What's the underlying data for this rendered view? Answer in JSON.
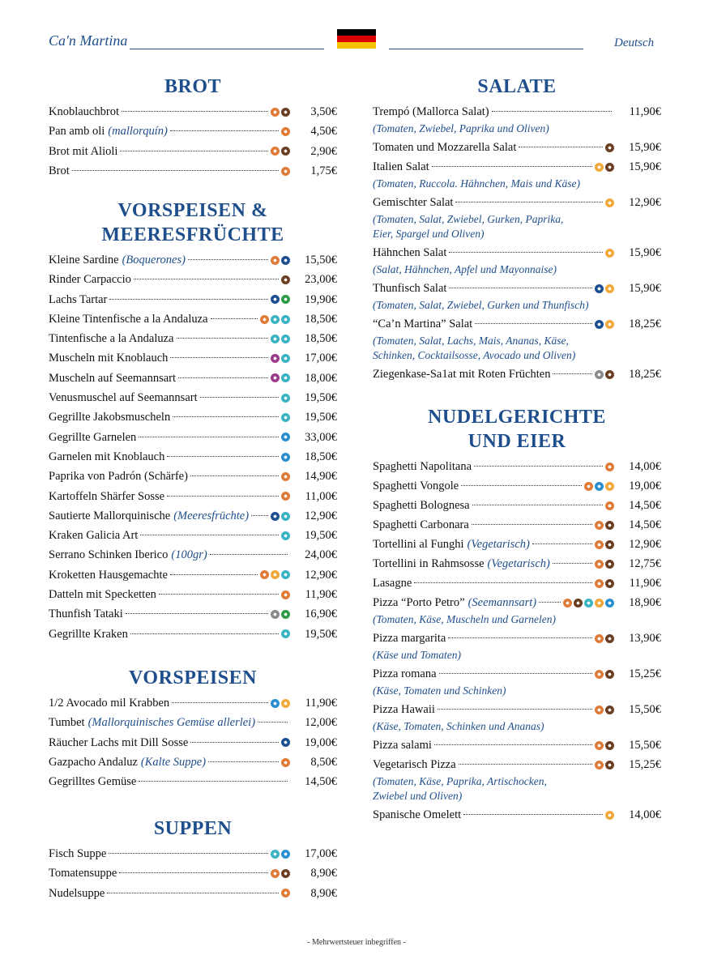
{
  "header": {
    "logo": "Ca'n Martina",
    "language": "Deutsch"
  },
  "footer": "- Mehrwertsteuer inbegriffen -",
  "columns": [
    {
      "sections": [
        {
          "title": [
            "BROT"
          ],
          "items": [
            {
              "name": "Knoblauchbrot",
              "price": "3,50€",
              "icons": [
                "#e07b39",
                "#6b3e22"
              ]
            },
            {
              "name": "Pan amb oli",
              "note": "(mallorquín)",
              "price": "4,50€",
              "icons": [
                "#e07b39"
              ]
            },
            {
              "name": "Brot mit Alioli",
              "price": "2,90€",
              "icons": [
                "#e07b39",
                "#6b3e22"
              ]
            },
            {
              "name": "Brot",
              "price": "1,75€",
              "icons": [
                "#e07b39"
              ]
            }
          ]
        },
        {
          "title": [
            "VORSPEISEN &",
            "MEERESFRÜCHTE"
          ],
          "items": [
            {
              "name": "Kleine Sardine",
              "note": "(Boquerones)",
              "price": "15,50€",
              "icons": [
                "#e07b39",
                "#1d4f91"
              ]
            },
            {
              "name": "Rinder Carpaccio",
              "price": "23,00€",
              "icons": [
                "#6b3e22"
              ]
            },
            {
              "name": "Lachs Tartar",
              "price": "19,90€",
              "icons": [
                "#1d4f91",
                "#2e9a48"
              ]
            },
            {
              "name": "Kleine Tintenfische a la Andaluza",
              "price": "18,50€",
              "icons": [
                "#e07b39",
                "#3bb3c3",
                "#3bb3c3"
              ]
            },
            {
              "name": "Tintenfische a la Andaluza",
              "price": "18,50€",
              "icons": [
                "#3bb3c3",
                "#3bb3c3"
              ]
            },
            {
              "name": "Muscheln mit Knoblauch",
              "price": "17,00€",
              "icons": [
                "#9a3b8c",
                "#3bb3c3"
              ]
            },
            {
              "name": "Muscheln auf Seemannsart",
              "price": "18,00€",
              "icons": [
                "#9a3b8c",
                "#3bb3c3"
              ]
            },
            {
              "name": "Venusmuschel auf Seemannsart",
              "price": "19,50€",
              "icons": [
                "#3bb3c3"
              ]
            },
            {
              "name": "Gegrillte Jakobsmuscheln",
              "price": "19,50€",
              "icons": [
                "#3bb3c3"
              ]
            },
            {
              "name": "Gegrillte Garnelen",
              "price": "33,00€",
              "icons": [
                "#2a8fd0"
              ]
            },
            {
              "name": "Garnelen mit Knoblauch",
              "price": "18,50€",
              "icons": [
                "#2a8fd0"
              ]
            },
            {
              "name": "Paprika von Padrón (Schärfe)",
              "price": "14,90€",
              "icons": [
                "#e07b39"
              ]
            },
            {
              "name": "Kartoffeln Shärfer Sosse",
              "price": "11,00€",
              "icons": [
                "#e07b39"
              ]
            },
            {
              "name": "Sautierte Mallorquinische",
              "note": "(Meeresfrüchte)",
              "price": "12,90€",
              "icons": [
                "#1d4f91",
                "#3bb3c3"
              ]
            },
            {
              "name": "Kraken Galicia Art",
              "price": "19,50€",
              "icons": [
                "#3bb3c3"
              ]
            },
            {
              "name": "Serrano Schinken Iberico",
              "note": "(100gr)",
              "price": "24,00€",
              "icons": []
            },
            {
              "name": "Kroketten Hausgemachte",
              "price": "12,90€",
              "icons": [
                "#e07b39",
                "#f2a93b",
                "#3bb3c3"
              ]
            },
            {
              "name": "Datteln mit Specketten",
              "price": "11,90€",
              "icons": [
                "#e07b39"
              ]
            },
            {
              "name": "Thunfish Tataki",
              "price": "16,90€",
              "icons": [
                "#8a8a8a",
                "#2e9a48"
              ]
            },
            {
              "name": "Gegrillte Kraken",
              "price": "19,50€",
              "icons": [
                "#3bb3c3"
              ]
            }
          ]
        },
        {
          "title": [
            "VORSPEISEN"
          ],
          "items": [
            {
              "name": "1/2 Avocado mil Krabben",
              "price": "11,90€",
              "icons": [
                "#2a8fd0",
                "#f2a93b"
              ]
            },
            {
              "name": "Tumbet",
              "note": "(Mallorquinisches Gemüse allerlei)",
              "price": "12,00€",
              "icons": []
            },
            {
              "name": "Räucher Lachs mit Dill Sosse",
              "price": "19,00€",
              "icons": [
                "#1d4f91"
              ]
            },
            {
              "name": "Gazpacho Andaluz",
              "note": "(Kalte Suppe)",
              "price": "8,50€",
              "icons": [
                "#e07b39"
              ]
            },
            {
              "name": "Gegrilltes Gemüse",
              "price": "14,50€",
              "icons": []
            }
          ]
        },
        {
          "title": [
            "SUPPEN"
          ],
          "items": [
            {
              "name": "Fisch Suppe",
              "price": "17,00€",
              "icons": [
                "#3bb3c3",
                "#2a8fd0"
              ]
            },
            {
              "name": "Tomatensuppe",
              "price": "8,90€",
              "icons": [
                "#e07b39",
                "#6b3e22"
              ]
            },
            {
              "name": "Nudelsuppe",
              "price": "8,90€",
              "icons": [
                "#e07b39"
              ]
            }
          ]
        }
      ]
    },
    {
      "sections": [
        {
          "title": [
            "SALATE"
          ],
          "items": [
            {
              "name": "Trempó (Mallorca Salat)",
              "price": "11,90€",
              "icons": [],
              "desc": [
                "(Tomaten, Zwiebel, Paprika und Oliven)"
              ]
            },
            {
              "name": "Tomaten und Mozzarella Salat",
              "price": "15,90€",
              "icons": [
                "#6b3e22"
              ]
            },
            {
              "name": "Italien Salat",
              "price": "15,90€",
              "icons": [
                "#f2a93b",
                "#6b3e22"
              ],
              "desc": [
                "(Tomaten, Ruccola. Hähnchen, Mais und Käse)"
              ]
            },
            {
              "name": "Gemischter Salat",
              "price": "12,90€",
              "icons": [
                "#f2a93b"
              ],
              "desc": [
                "(Tomaten, Salat, Zwiebel, Gurken, Paprika,",
                "Eier, Spargel und Oliven)"
              ]
            },
            {
              "name": "Hähnchen Salat",
              "price": "15,90€",
              "icons": [
                "#f2a93b"
              ],
              "desc": [
                "(Salat, Hähnchen, Apfel und Mayonnaise)"
              ]
            },
            {
              "name": "Thunfisch Salat",
              "price": "15,90€",
              "icons": [
                "#1d4f91",
                "#f2a93b"
              ],
              "desc": [
                "(Tomaten, Salat, Zwiebel, Gurken und Thunfisch)"
              ]
            },
            {
              "name": "“Ca’n Martina” Salat",
              "price": "18,25€",
              "icons": [
                "#1d4f91",
                "#f2a93b"
              ],
              "desc": [
                "(Tomaten, Salat, Lachs, Mais, Ananas, Käse,",
                "Schinken, Cocktailsosse, Avocado und Oliven)"
              ]
            },
            {
              "name": "Ziegenkase-Sa1at mit Roten Früchten",
              "price": "18,25€",
              "icons": [
                "#8a8a8a",
                "#6b3e22"
              ]
            }
          ]
        },
        {
          "title": [
            "NUDELGERICHTE",
            "UND EIER"
          ],
          "items": [
            {
              "name": "Spaghetti Napolitana",
              "price": "14,00€",
              "icons": [
                "#e07b39"
              ]
            },
            {
              "name": "Spaghetti Vongole",
              "price": "19,00€",
              "icons": [
                "#e07b39",
                "#2a8fd0",
                "#f2a93b"
              ]
            },
            {
              "name": "Spaghetti Bolognesa",
              "price": "14,50€",
              "icons": [
                "#e07b39"
              ]
            },
            {
              "name": "Spaghetti Carbonara",
              "price": "14,50€",
              "icons": [
                "#e07b39",
                "#6b3e22"
              ]
            },
            {
              "name": "Tortellini al Funghi",
              "note": "(Vegetarisch)",
              "price": "12,90€",
              "icons": [
                "#e07b39",
                "#6b3e22"
              ]
            },
            {
              "name": "Tortellini in Rahmsosse",
              "note": "(Vegetarisch)",
              "price": "12,75€",
              "icons": [
                "#e07b39",
                "#6b3e22"
              ]
            },
            {
              "name": "Lasagne",
              "price": "11,90€",
              "icons": [
                "#e07b39",
                "#6b3e22"
              ]
            },
            {
              "name": "Pizza “Porto Petro”",
              "note": "(Seemannsart)",
              "price": "18,90€",
              "icons": [
                "#e07b39",
                "#6b3e22",
                "#3bb3c3",
                "#f2a93b",
                "#2a8fd0"
              ],
              "desc": [
                "(Tomaten, Käse, Muscheln und Garnelen)"
              ]
            },
            {
              "name": "Pizza margarita",
              "price": "13,90€",
              "icons": [
                "#e07b39",
                "#6b3e22"
              ],
              "desc": [
                "(Käse und Tomaten)"
              ]
            },
            {
              "name": "Pizza romana",
              "price": "15,25€",
              "icons": [
                "#e07b39",
                "#6b3e22"
              ],
              "desc": [
                "(Käse, Tomaten und Schinken)"
              ]
            },
            {
              "name": "Pizza Hawaii",
              "price": "15,50€",
              "icons": [
                "#e07b39",
                "#6b3e22"
              ],
              "desc": [
                "(Käse, Tomaten, Schinken und Ananas)"
              ]
            },
            {
              "name": "Pizza salami",
              "price": "15,50€",
              "icons": [
                "#e07b39",
                "#6b3e22"
              ]
            },
            {
              "name": "Vegetarisch Pizza",
              "price": "15,25€",
              "icons": [
                "#e07b39",
                "#6b3e22"
              ],
              "desc": [
                "(Tomaten, Käse, Paprika, Artischocken,",
                "Zwiebel und Oliven)"
              ]
            },
            {
              "name": "Spanische Omelett",
              "price": "14,00€",
              "icons": [
                "#f2a93b"
              ]
            }
          ]
        }
      ]
    }
  ]
}
